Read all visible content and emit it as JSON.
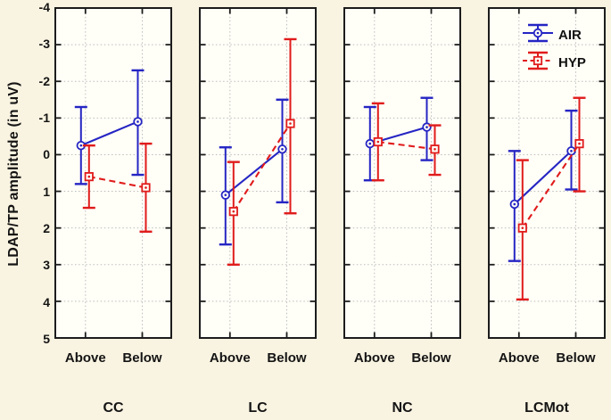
{
  "colors": {
    "background": "#f9f3e1",
    "panel_background": "#fffef7",
    "frame": "#1c1c1c",
    "grid": "#bdbdbd",
    "text": "#141414",
    "air": "#2525c4",
    "hyp": "#e01b1b"
  },
  "legend": {
    "entries": [
      {
        "label": "AIR",
        "color": "#2525c4",
        "marker": "circle",
        "line": "solid"
      },
      {
        "label": "HYP",
        "color": "#e01b1b",
        "marker": "square",
        "line": "dashed"
      }
    ]
  },
  "chart_data": {
    "type": "line",
    "ylabel": "LDAP/TP amplitude (in uV)",
    "ylim": [
      -4,
      5
    ],
    "y_inverted": true,
    "yticks": [
      -4,
      -3,
      -2,
      -1,
      0,
      1,
      2,
      3,
      4,
      5
    ],
    "grid": true,
    "legend_position": "top-right",
    "categories": [
      "Above",
      "Below"
    ],
    "panels": [
      {
        "group": "CC",
        "series": [
          {
            "name": "AIR",
            "points": [
              {
                "v": -0.25,
                "lo": -1.3,
                "hi": 0.8
              },
              {
                "v": -0.9,
                "lo": -2.3,
                "hi": 0.55
              }
            ]
          },
          {
            "name": "HYP",
            "points": [
              {
                "v": 0.6,
                "lo": -0.25,
                "hi": 1.45
              },
              {
                "v": 0.9,
                "lo": -0.3,
                "hi": 2.1
              }
            ]
          }
        ]
      },
      {
        "group": "LC",
        "series": [
          {
            "name": "AIR",
            "points": [
              {
                "v": 1.1,
                "lo": -0.2,
                "hi": 2.45
              },
              {
                "v": -0.15,
                "lo": -1.5,
                "hi": 1.3
              }
            ]
          },
          {
            "name": "HYP",
            "points": [
              {
                "v": 1.55,
                "lo": 0.2,
                "hi": 3.0
              },
              {
                "v": -0.85,
                "lo": -3.15,
                "hi": 1.6
              }
            ]
          }
        ]
      },
      {
        "group": "NC",
        "series": [
          {
            "name": "AIR",
            "points": [
              {
                "v": -0.3,
                "lo": -1.3,
                "hi": 0.7
              },
              {
                "v": -0.75,
                "lo": -1.55,
                "hi": 0.15
              }
            ]
          },
          {
            "name": "HYP",
            "points": [
              {
                "v": -0.35,
                "lo": -1.4,
                "hi": 0.7
              },
              {
                "v": -0.15,
                "lo": -0.8,
                "hi": 0.55
              }
            ]
          }
        ]
      },
      {
        "group": "LCMot",
        "series": [
          {
            "name": "AIR",
            "points": [
              {
                "v": 1.35,
                "lo": -0.1,
                "hi": 2.9
              },
              {
                "v": -0.1,
                "lo": -1.2,
                "hi": 0.95
              }
            ]
          },
          {
            "name": "HYP",
            "points": [
              {
                "v": 2.0,
                "lo": 0.15,
                "hi": 3.95
              },
              {
                "v": -0.3,
                "lo": -1.55,
                "hi": 1.0
              }
            ]
          }
        ]
      }
    ]
  }
}
